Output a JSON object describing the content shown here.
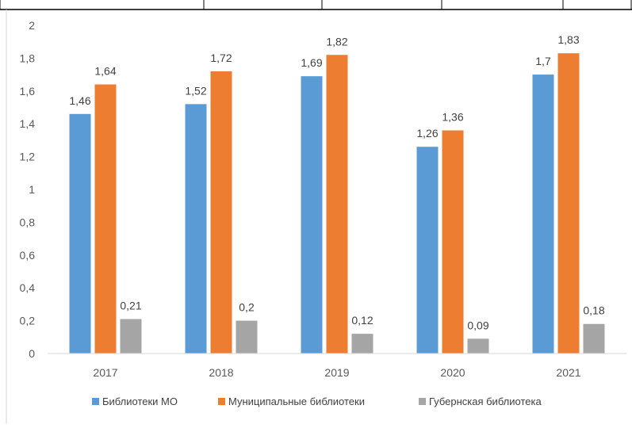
{
  "chart_data": {
    "type": "bar",
    "categories": [
      "2017",
      "2018",
      "2019",
      "2020",
      "2021"
    ],
    "series": [
      {
        "name": "Библиотеки МО",
        "color": "#5B9BD5",
        "values": [
          1.46,
          1.52,
          1.69,
          1.26,
          1.7
        ],
        "labels": [
          "1,46",
          "1,52",
          "1,69",
          "1,26",
          "1,7"
        ]
      },
      {
        "name": "Муниципальные библиотеки",
        "color": "#ED7D31",
        "values": [
          1.64,
          1.72,
          1.82,
          1.36,
          1.83
        ],
        "labels": [
          "1,64",
          "1,72",
          "1,82",
          "1,36",
          "1,83"
        ]
      },
      {
        "name": "Губернская библиотека",
        "color": "#A5A5A5",
        "values": [
          0.21,
          0.2,
          0.12,
          0.09,
          0.18
        ],
        "labels": [
          "0,21",
          "0,2",
          "0,12",
          "0,09",
          "0,18"
        ]
      }
    ],
    "y_ticks": [
      {
        "value": 0,
        "label": "0"
      },
      {
        "value": 0.2,
        "label": "0,2"
      },
      {
        "value": 0.4,
        "label": "0,4"
      },
      {
        "value": 0.6,
        "label": "0,6"
      },
      {
        "value": 0.8,
        "label": "0,8"
      },
      {
        "value": 1,
        "label": "1"
      },
      {
        "value": 1.2,
        "label": "1,2"
      },
      {
        "value": 1.4,
        "label": "1,4"
      },
      {
        "value": 1.6,
        "label": "1,6"
      },
      {
        "value": 1.8,
        "label": "1,8"
      },
      {
        "value": 2,
        "label": "2"
      }
    ],
    "ylim": [
      0,
      2
    ],
    "grid": false,
    "legend_position": "bottom",
    "title": "",
    "xlabel": "",
    "ylabel": ""
  }
}
